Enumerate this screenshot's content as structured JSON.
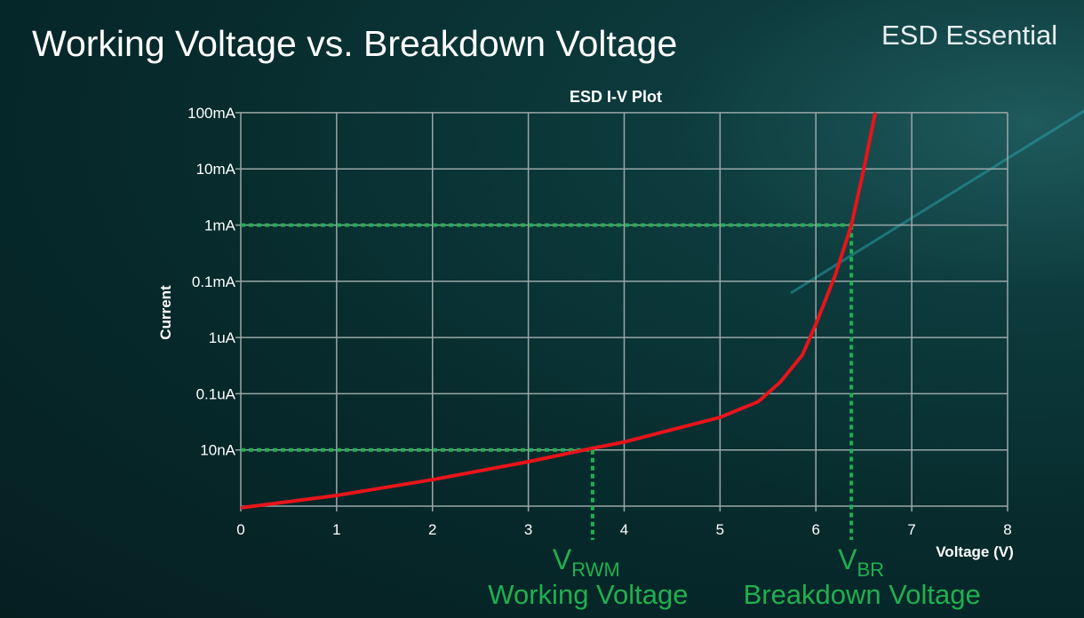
{
  "slide": {
    "title": "Working Voltage vs. Breakdown Voltage",
    "brand": "ESD Essential"
  },
  "colors": {
    "curve": "#e8141a",
    "reference": "#20b050",
    "grid": "#9aa7a8",
    "background": "#072a2c"
  },
  "chart_data": {
    "type": "line",
    "title": "ESD I-V Plot",
    "xlabel": "Voltage (V)",
    "ylabel": "Current",
    "xlim": [
      0,
      8
    ],
    "x_ticks": [
      "0",
      "1",
      "2",
      "3",
      "4",
      "5",
      "6",
      "7",
      "8"
    ],
    "y_ticks": [
      "10nA",
      "0.1uA",
      "1uA",
      "0.1mA",
      "1mA",
      "10mA",
      "100mA"
    ],
    "grid": true,
    "y_scale": "log (tick levels)",
    "series": [
      {
        "x": [
          0,
          1,
          2,
          3,
          3.67,
          4,
          5,
          5.4,
          5.63,
          5.86,
          6.0,
          6.2,
          6.37,
          6.5,
          6.62
        ],
        "y_level": [
          -0.03,
          0.19,
          0.47,
          0.79,
          1.03,
          1.14,
          1.58,
          1.86,
          2.21,
          2.69,
          3.24,
          4.1,
          5.0,
          6.0,
          7.0
        ]
      }
    ],
    "annotations": [
      {
        "symbol": "V",
        "subscript": "RWM",
        "label": "Working Voltage",
        "x": 3.67,
        "current": "10nA"
      },
      {
        "symbol": "V",
        "subscript": "BR",
        "label": "Breakdown Voltage",
        "x": 6.37,
        "current": "1mA"
      }
    ]
  }
}
